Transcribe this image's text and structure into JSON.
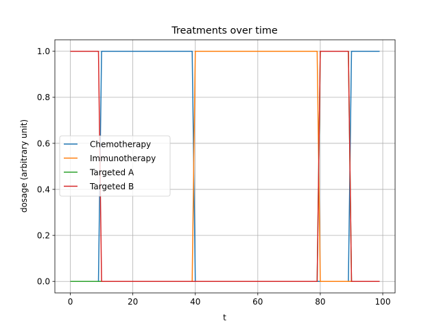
{
  "chart_data": {
    "type": "line",
    "title": "Treatments over time",
    "xlabel": "t",
    "ylabel": "dosage (arbitrary unit)",
    "xlim": [
      -4.95,
      103.95
    ],
    "ylim": [
      -0.05,
      1.05
    ],
    "xticks": [
      0,
      20,
      40,
      60,
      80,
      100
    ],
    "yticks": [
      0.0,
      0.2,
      0.4,
      0.6,
      0.8,
      1.0
    ],
    "xtick_labels": [
      "0",
      "20",
      "40",
      "60",
      "80",
      "100"
    ],
    "ytick_labels": [
      "0.0",
      "0.2",
      "0.4",
      "0.6",
      "0.8",
      "1.0"
    ],
    "grid": true,
    "legend_position": "center-left",
    "series": [
      {
        "name": "Chemotherapy",
        "color": "#1f77b4",
        "x": [
          0,
          9,
          10,
          39,
          40,
          89,
          90,
          99
        ],
        "y": [
          0,
          0,
          1,
          1,
          0,
          0,
          1,
          1
        ]
      },
      {
        "name": "Immunotherapy",
        "color": "#ff7f0e",
        "x": [
          0,
          39,
          40,
          79,
          80,
          99
        ],
        "y": [
          0,
          0,
          1,
          1,
          0,
          0
        ]
      },
      {
        "name": "Targeted A",
        "color": "#2ca02c",
        "x": [
          0,
          79,
          80,
          89,
          90,
          99
        ],
        "y": [
          0,
          0,
          1,
          1,
          0,
          0
        ]
      },
      {
        "name": "Targeted B",
        "color": "#d62728",
        "x": [
          0,
          9,
          10,
          79,
          80,
          89,
          90,
          99
        ],
        "y": [
          1,
          1,
          0,
          0,
          1,
          1,
          0,
          0
        ]
      }
    ]
  }
}
